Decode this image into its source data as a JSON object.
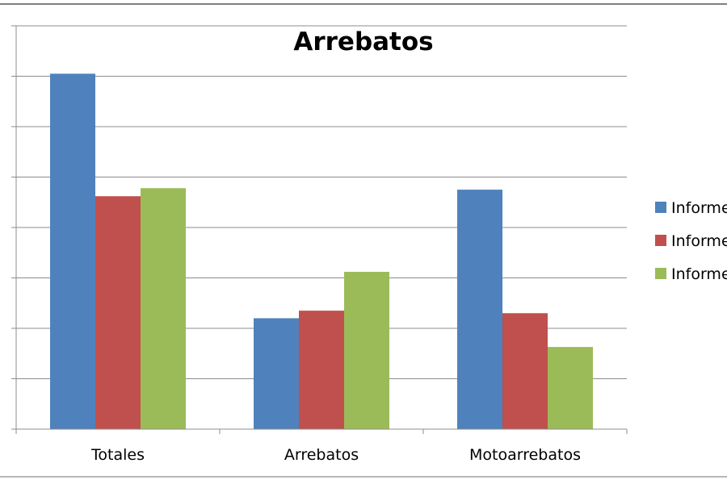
{
  "chart_data": {
    "type": "bar",
    "title": "Arrebatos",
    "categories": [
      "Totales",
      "Arrebatos",
      "Motoarrebatos"
    ],
    "series": [
      {
        "name": "Informe",
        "color": "#4f81bd",
        "values": [
          7.05,
          2.2,
          4.75
        ]
      },
      {
        "name": "Informe",
        "color": "#c0504d",
        "values": [
          4.62,
          2.35,
          2.3
        ]
      },
      {
        "name": "Informe",
        "color": "#9bbb59",
        "values": [
          4.78,
          3.12,
          1.63
        ]
      }
    ],
    "ylim": [
      0,
      8
    ],
    "ytick_step": 1,
    "grid": true,
    "legend_position": "right",
    "xlabel": "",
    "ylabel": ""
  }
}
